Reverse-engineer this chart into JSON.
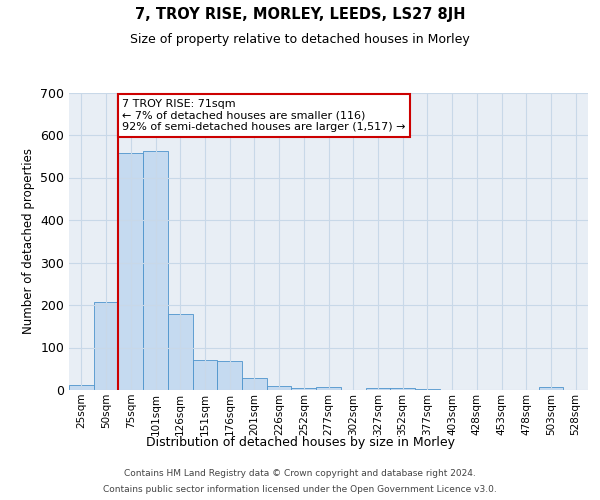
{
  "title": "7, TROY RISE, MORLEY, LEEDS, LS27 8JH",
  "subtitle": "Size of property relative to detached houses in Morley",
  "xlabel": "Distribution of detached houses by size in Morley",
  "ylabel": "Number of detached properties",
  "categories": [
    "25sqm",
    "50sqm",
    "75sqm",
    "101sqm",
    "126sqm",
    "151sqm",
    "176sqm",
    "201sqm",
    "226sqm",
    "252sqm",
    "277sqm",
    "302sqm",
    "327sqm",
    "352sqm",
    "377sqm",
    "403sqm",
    "428sqm",
    "453sqm",
    "478sqm",
    "503sqm",
    "528sqm"
  ],
  "values": [
    12,
    207,
    557,
    562,
    180,
    70,
    68,
    28,
    10,
    5,
    7,
    0,
    5,
    5,
    3,
    0,
    0,
    0,
    0,
    7,
    0
  ],
  "bar_color": "#c5daf0",
  "bar_edge_color": "#4d94cc",
  "property_line_x": 1.5,
  "property_line_color": "#cc0000",
  "annotation_text": "7 TROY RISE: 71sqm\n← 7% of detached houses are smaller (116)\n92% of semi-detached houses are larger (1,517) →",
  "annotation_box_edgecolor": "#cc0000",
  "ylim": [
    0,
    700
  ],
  "yticks": [
    0,
    100,
    200,
    300,
    400,
    500,
    600,
    700
  ],
  "plot_bg_color": "#e8eef5",
  "grid_color": "#c8d8e8",
  "footer_line1": "Contains HM Land Registry data © Crown copyright and database right 2024.",
  "footer_line2": "Contains public sector information licensed under the Open Government Licence v3.0."
}
